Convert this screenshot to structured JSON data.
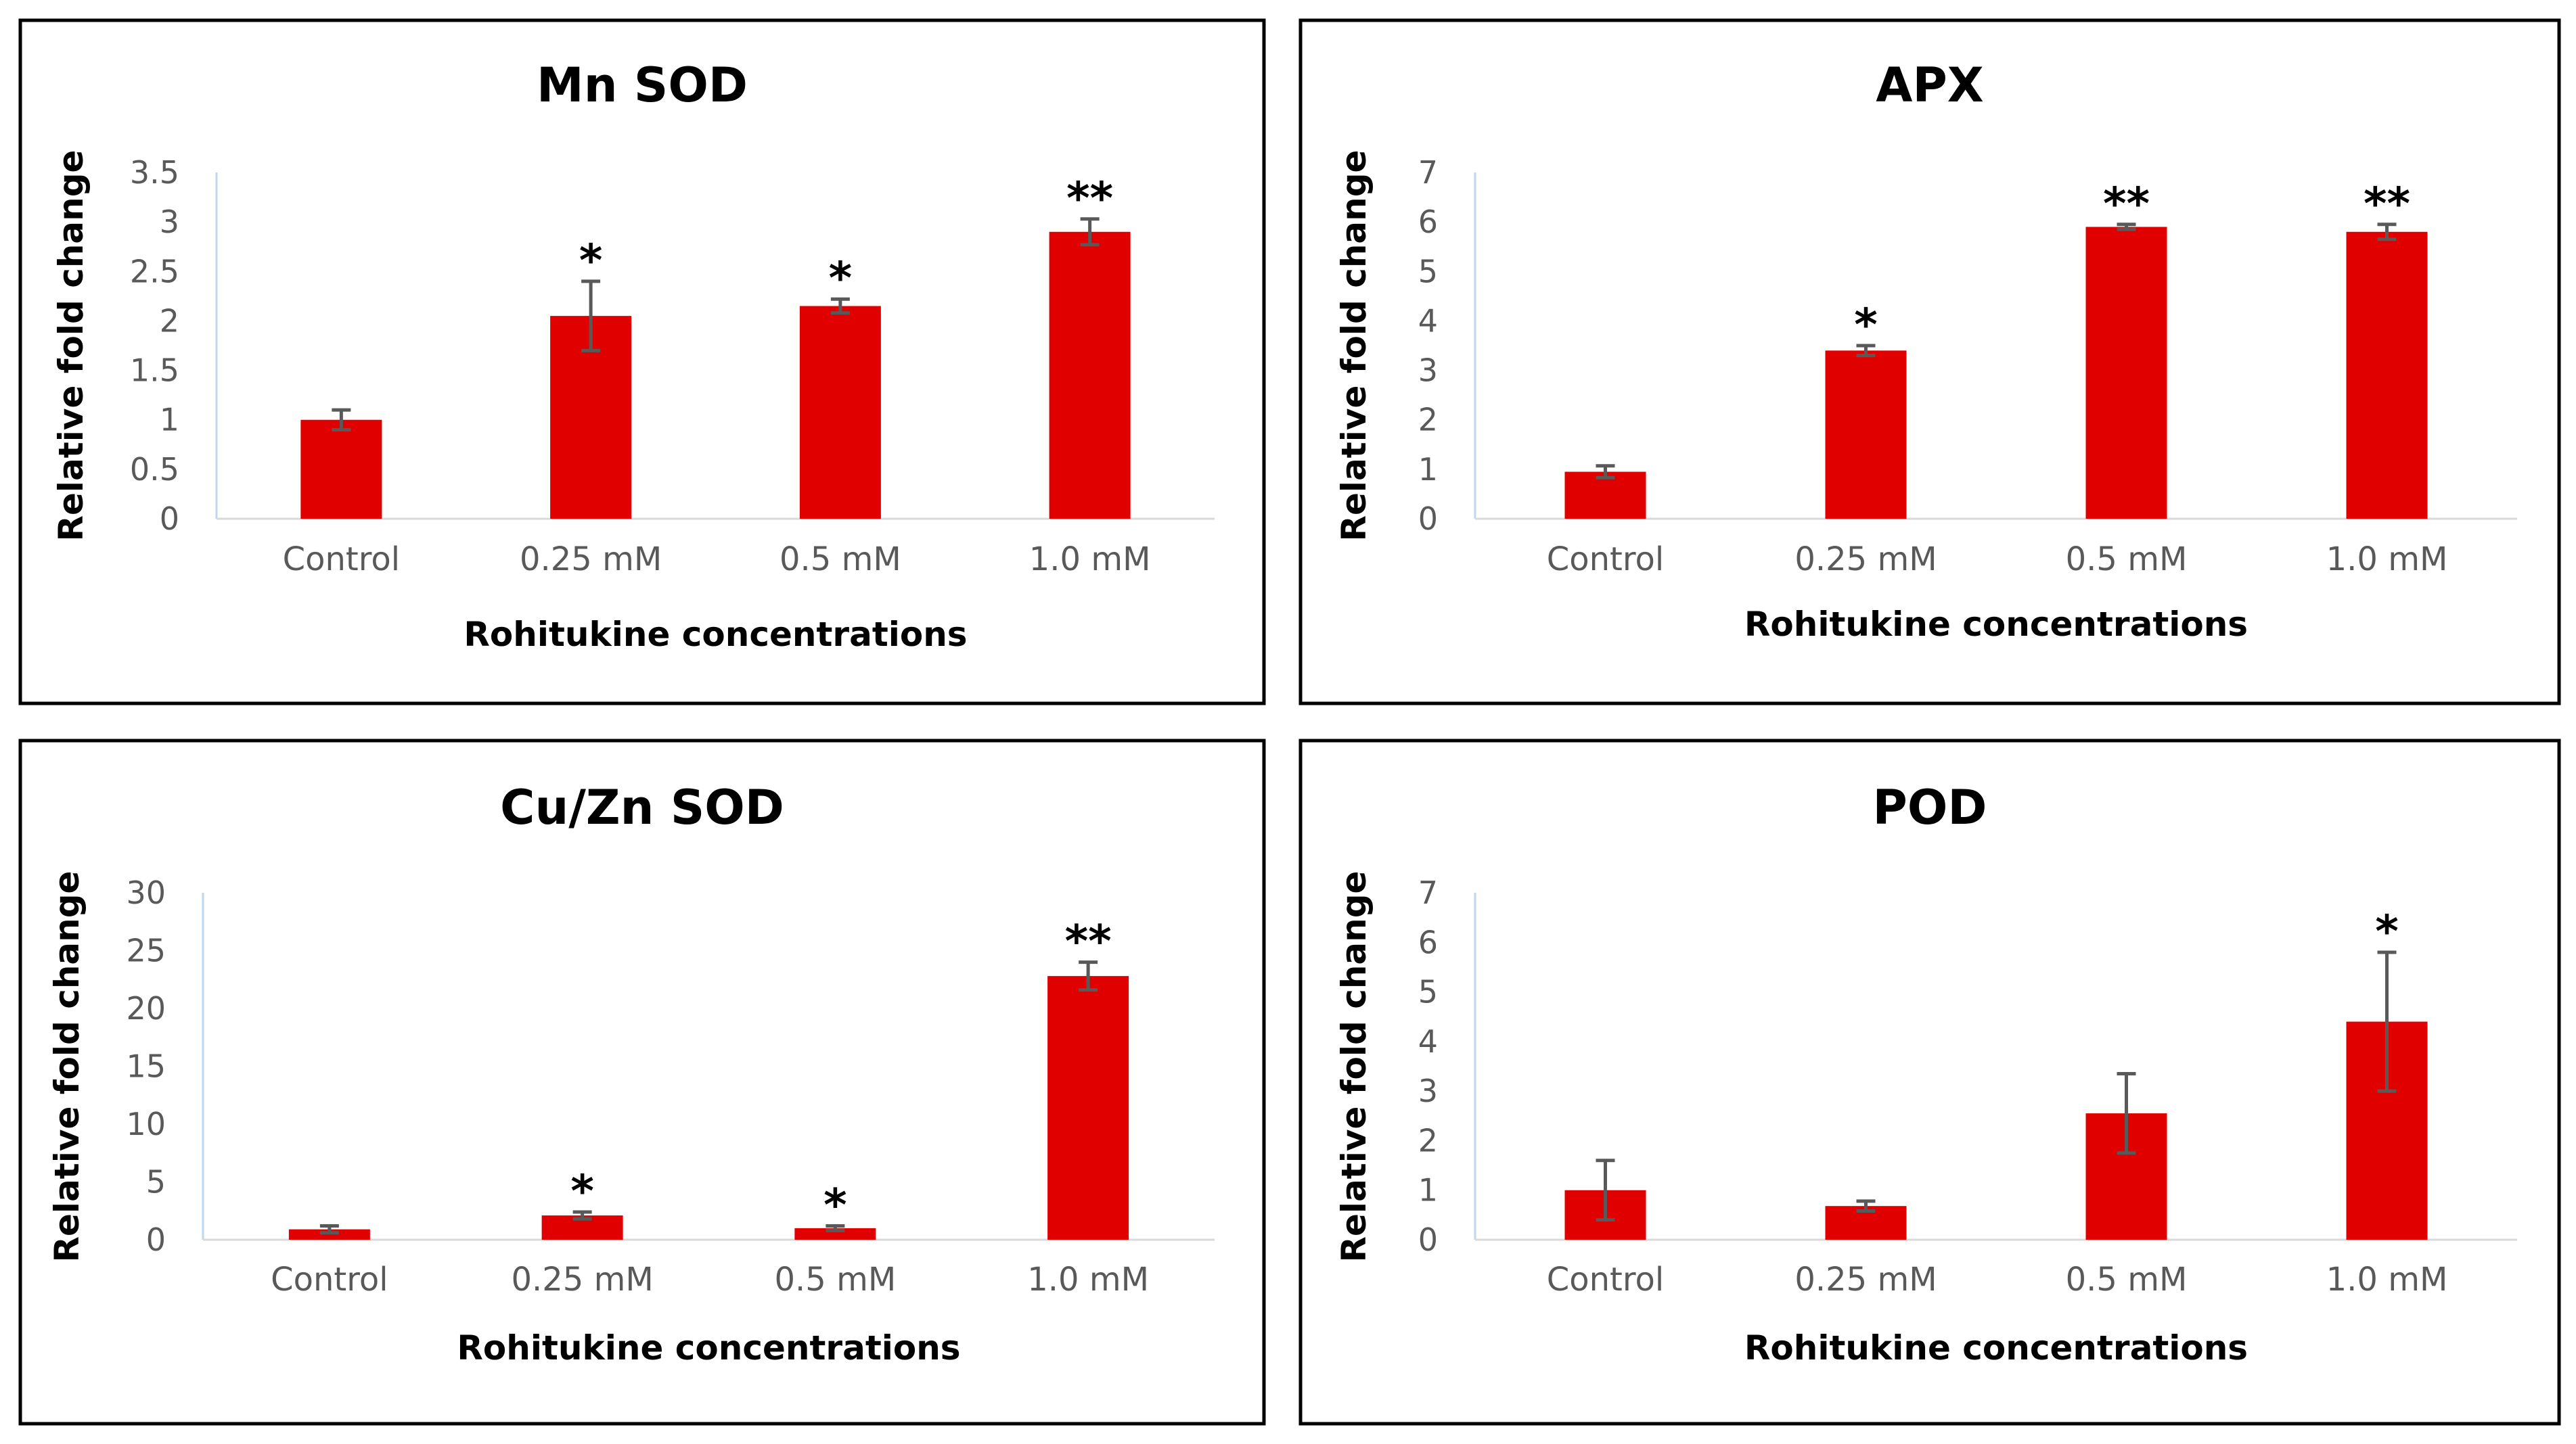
{
  "figure": {
    "colors": {
      "bar": "#e00000",
      "error_bar": "#595959",
      "frame": "#000000",
      "tick_text": "#595959",
      "x_axis_line": "#d9d9d9",
      "y_axis_line": "#bdd7ee"
    }
  },
  "chart_data": [
    {
      "type": "bar",
      "title": "Mn SOD",
      "xlabel": "Rohitukine concentrations",
      "ylabel": "Relative fold change",
      "categories": [
        "Control",
        "0.25 mM",
        "0.5 mM",
        "1.0 mM"
      ],
      "values": [
        1.0,
        2.05,
        2.15,
        2.9
      ],
      "errors": [
        0.1,
        0.35,
        0.07,
        0.13
      ],
      "significance": [
        "",
        "*",
        "*",
        "**"
      ],
      "ylim": [
        0,
        3.5
      ],
      "yticks": [
        "0",
        "0.5",
        "1",
        "1.5",
        "2",
        "2.5",
        "3",
        "3.5"
      ],
      "grid": false,
      "legend": "none"
    },
    {
      "type": "bar",
      "title": "APX",
      "xlabel": "Rohitukine concentrations",
      "ylabel": "Relative fold change",
      "categories": [
        "Control",
        "0.25 mM",
        "0.5 mM",
        "1.0 mM"
      ],
      "values": [
        0.95,
        3.4,
        5.9,
        5.8
      ],
      "errors": [
        0.12,
        0.1,
        0.05,
        0.15
      ],
      "significance": [
        "",
        "*",
        "**",
        "**"
      ],
      "ylim": [
        0,
        7
      ],
      "yticks": [
        "0",
        "1",
        "2",
        "3",
        "4",
        "5",
        "6",
        "7"
      ],
      "grid": false,
      "legend": "none"
    },
    {
      "type": "bar",
      "title": "Cu/Zn SOD",
      "xlabel": "Rohitukine concentrations",
      "ylabel": "Relative fold change",
      "categories": [
        "Control",
        "0.25 mM",
        "0.5 mM",
        "1.0 mM"
      ],
      "values": [
        0.9,
        2.1,
        1.0,
        22.8
      ],
      "errors": [
        0.3,
        0.3,
        0.2,
        1.2
      ],
      "significance": [
        "",
        "*",
        "*",
        "**"
      ],
      "ylim": [
        0,
        30
      ],
      "yticks": [
        "0",
        "5",
        "10",
        "15",
        "20",
        "25",
        "30"
      ],
      "grid": false,
      "legend": "none"
    },
    {
      "type": "bar",
      "title": "POD",
      "xlabel": "Rohitukine concentrations",
      "ylabel": "Relative fold change",
      "categories": [
        "Control",
        "0.25 mM",
        "0.5 mM",
        "1.0 mM"
      ],
      "values": [
        1.0,
        0.68,
        2.55,
        4.4
      ],
      "errors": [
        0.6,
        0.1,
        0.8,
        1.4
      ],
      "significance": [
        "",
        "",
        "",
        "*"
      ],
      "ylim": [
        0,
        7
      ],
      "yticks": [
        "0",
        "1",
        "2",
        "3",
        "4",
        "5",
        "6",
        "7"
      ],
      "grid": false,
      "legend": "none"
    }
  ]
}
